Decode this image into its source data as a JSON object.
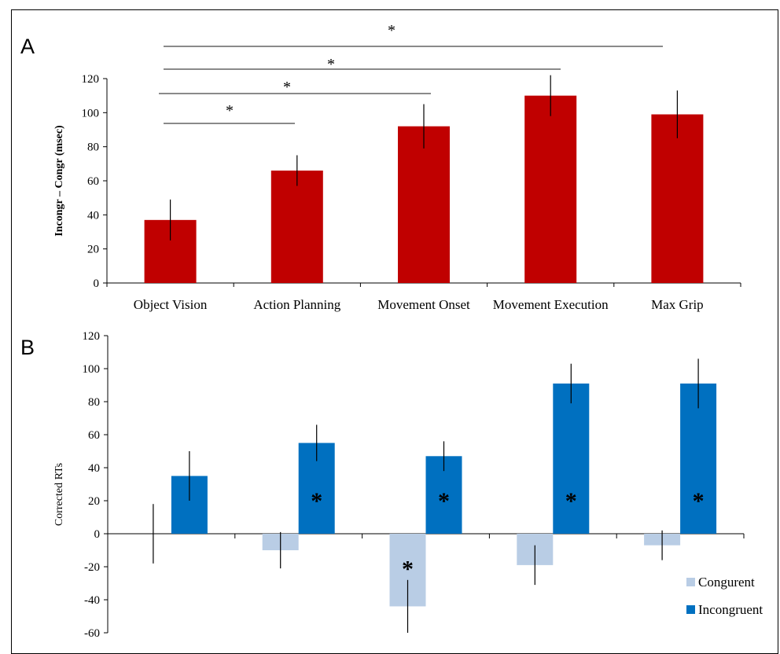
{
  "chart_data": [
    {
      "panel": "A",
      "type": "bar",
      "categories": [
        "Object Vision",
        "Action Planning",
        "Movement  Onset",
        "Movement  Execution",
        "Max Grip"
      ],
      "values": [
        37,
        66,
        92,
        110,
        99
      ],
      "errors": [
        12,
        9,
        13,
        12,
        14
      ],
      "ylabel": "Incongr – Congr (msec)",
      "ylim": [
        0,
        120
      ],
      "yticks": [
        0,
        20,
        40,
        60,
        80,
        100,
        120
      ],
      "bar_color": "#c00000",
      "significance": [
        {
          "from": 0,
          "to": 1,
          "label": "*"
        },
        {
          "from": 0,
          "to": 2,
          "label": "*"
        },
        {
          "from": 0,
          "to": 3,
          "label": "*"
        },
        {
          "from": 0,
          "to": 4,
          "label": "*"
        }
      ]
    },
    {
      "panel": "B",
      "type": "bar",
      "groups": 5,
      "series": [
        {
          "name": "Congurent",
          "color": "#b9cde5",
          "values": [
            0,
            -10,
            -44,
            -19,
            -7
          ],
          "errors": [
            18,
            11,
            16,
            12,
            9
          ],
          "stars": [
            false,
            false,
            true,
            false,
            false
          ]
        },
        {
          "name": "Incongruent",
          "color": "#0070c0",
          "values": [
            35,
            55,
            47,
            91,
            91
          ],
          "errors": [
            15,
            11,
            9,
            12,
            15
          ],
          "stars": [
            false,
            true,
            true,
            true,
            true
          ]
        }
      ],
      "ylabel": "Corrected RTs",
      "ylim": [
        -60,
        120
      ],
      "yticks": [
        -60,
        -40,
        -20,
        0,
        20,
        40,
        60,
        80,
        100,
        120
      ]
    }
  ]
}
